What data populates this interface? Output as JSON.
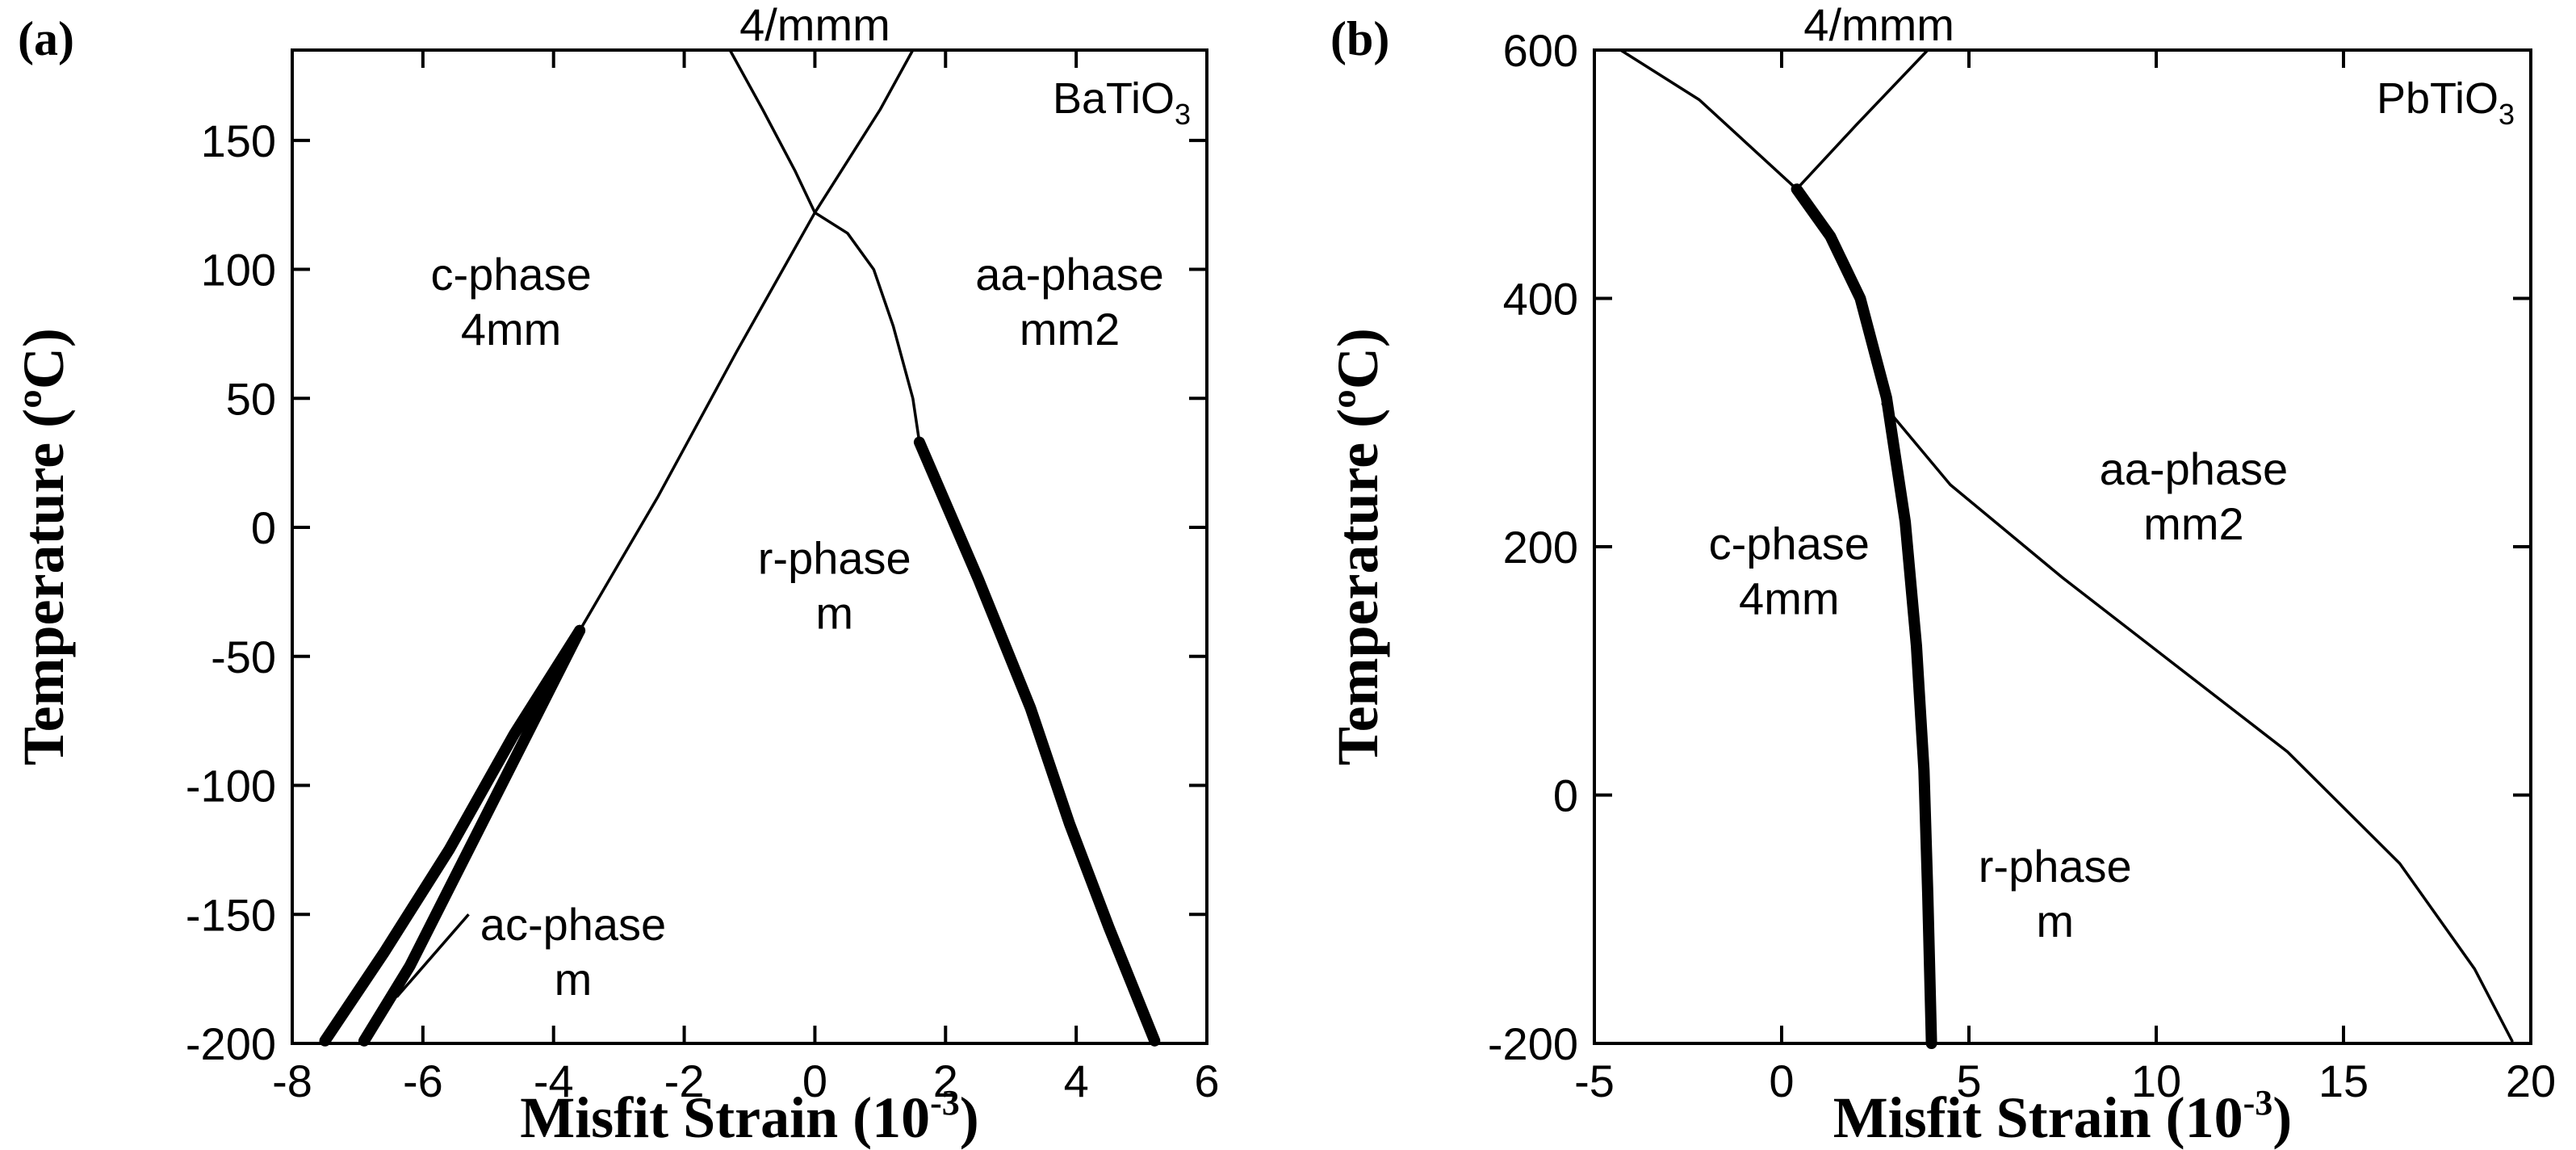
{
  "chart_data": [
    {
      "type": "line",
      "panel_label": "(a)",
      "material_base": "BaTiO",
      "material_sub": "3",
      "top_phase": "4/mmm",
      "xlabel_main": "Misfit Strain (10",
      "xlabel_exp": "-3",
      "xlabel_close": ")",
      "ylabel": "Temperature (ºC)",
      "xlim": [
        -8,
        6
      ],
      "ylim": [
        -200,
        185
      ],
      "xticks": [
        "-8",
        "-6",
        "-4",
        "-2",
        "0",
        "2",
        "4",
        "6"
      ],
      "xtick_values": [
        -8,
        -6,
        -4,
        -2,
        0,
        2,
        4,
        6
      ],
      "yticks": [
        "-200",
        "-150",
        "-100",
        "-50",
        "0",
        "50",
        "100",
        "150"
      ],
      "ytick_values": [
        -200,
        -150,
        -100,
        -50,
        0,
        50,
        100,
        150
      ],
      "regions": [
        {
          "line1": "c-phase",
          "line2": "4mm",
          "x": -4.65,
          "y": 92
        },
        {
          "line1": "aa-phase",
          "line2": "mm2",
          "x": 3.9,
          "y": 92
        },
        {
          "line1": "r-phase",
          "line2": "m",
          "x": 0.3,
          "y": -18
        },
        {
          "line1": "ac-phase",
          "line2": "m",
          "x": -3.7,
          "y": -160
        }
      ],
      "series": [
        {
          "name": "cubic-to-c (left upper)",
          "weight": "thin",
          "points": [
            [
              -1.3,
              185
            ],
            [
              -0.8,
              162
            ],
            [
              -0.3,
              138
            ],
            [
              0,
              122
            ]
          ]
        },
        {
          "name": "cubic-to-aa (right upper)",
          "weight": "thin",
          "points": [
            [
              0,
              122
            ],
            [
              0.5,
              142
            ],
            [
              1.0,
              162
            ],
            [
              1.5,
              185
            ]
          ]
        },
        {
          "name": "c / r boundary",
          "weight": "thin",
          "points": [
            [
              0,
              122
            ],
            [
              -0.6,
              95
            ],
            [
              -1.2,
              68
            ],
            [
              -1.8,
              40
            ],
            [
              -2.4,
              12
            ],
            [
              -3.0,
              -14
            ],
            [
              -3.6,
              -40
            ]
          ]
        },
        {
          "name": "aa / r boundary",
          "weight": "thin",
          "points": [
            [
              0,
              122
            ],
            [
              0.5,
              114
            ],
            [
              0.9,
              100
            ],
            [
              1.2,
              78
            ],
            [
              1.5,
              50
            ],
            [
              1.6,
              33
            ]
          ]
        },
        {
          "name": "c / ac boundary",
          "weight": "thick",
          "points": [
            [
              -3.6,
              -40
            ],
            [
              -4.6,
              -80
            ],
            [
              -5.6,
              -125
            ],
            [
              -6.6,
              -165
            ],
            [
              -7.5,
              -199
            ]
          ]
        },
        {
          "name": "ac / r boundary",
          "weight": "thick",
          "points": [
            [
              -3.6,
              -40
            ],
            [
              -4.5,
              -85
            ],
            [
              -5.4,
              -130
            ],
            [
              -6.2,
              -170
            ],
            [
              -6.9,
              -199
            ]
          ]
        },
        {
          "name": "aa / r first-order boundary",
          "weight": "thick",
          "points": [
            [
              1.6,
              33
            ],
            [
              2.5,
              -20
            ],
            [
              3.3,
              -70
            ],
            [
              3.9,
              -115
            ],
            [
              4.5,
              -155
            ],
            [
              5.2,
              -199
            ]
          ]
        }
      ],
      "callout": {
        "from": [
          -5.3,
          -150
        ],
        "to": [
          -6.4,
          -182
        ]
      }
    },
    {
      "type": "line",
      "panel_label": "(b)",
      "material_base": "PbTiO",
      "material_sub": "3",
      "top_phase": "4/mmm",
      "xlabel_main": "Misfit Strain (10",
      "xlabel_exp": "-3",
      "xlabel_close": ")",
      "ylabel": "Temperature (ºC)",
      "xlim": [
        -5,
        20
      ],
      "ylim": [
        -200,
        600
      ],
      "xticks": [
        "-5",
        "0",
        "5",
        "10",
        "15",
        "20"
      ],
      "xtick_values": [
        -5,
        0,
        5,
        10,
        15,
        20
      ],
      "yticks": [
        "-200",
        "0",
        "200",
        "400",
        "600"
      ],
      "ytick_values": [
        -200,
        0,
        200,
        400,
        600
      ],
      "regions": [
        {
          "line1": "aa-phase",
          "line2": "mm2",
          "x": 11.0,
          "y": 250
        },
        {
          "line1": "c-phase",
          "line2": "4mm",
          "x": 0.2,
          "y": 190
        },
        {
          "line1": "r-phase",
          "line2": "m",
          "x": 7.3,
          "y": -70
        }
      ],
      "series": [
        {
          "name": "cubic-to-c",
          "weight": "thin",
          "points": [
            [
              -4.3,
              600
            ],
            [
              -2.2,
              560
            ],
            [
              0.4,
              488
            ]
          ]
        },
        {
          "name": "cubic-to-aa",
          "weight": "thin",
          "points": [
            [
              0.4,
              488
            ],
            [
              2.0,
              540
            ],
            [
              3.9,
              600
            ]
          ]
        },
        {
          "name": "c / r first-order boundary",
          "weight": "thick",
          "points": [
            [
              0.4,
              488
            ],
            [
              1.3,
              450
            ],
            [
              2.1,
              400
            ],
            [
              2.8,
              320
            ],
            [
              3.3,
              220
            ],
            [
              3.6,
              120
            ],
            [
              3.8,
              20
            ],
            [
              3.9,
              -80
            ],
            [
              4.0,
              -200
            ]
          ]
        },
        {
          "name": "aa / r boundary",
          "weight": "thin",
          "points": [
            [
              2.7,
              315
            ],
            [
              4.5,
              250
            ],
            [
              7.5,
              175
            ],
            [
              10.5,
              105
            ],
            [
              13.5,
              35
            ],
            [
              16.5,
              -55
            ],
            [
              18.5,
              -140
            ],
            [
              19.5,
              -198
            ]
          ]
        }
      ]
    }
  ]
}
